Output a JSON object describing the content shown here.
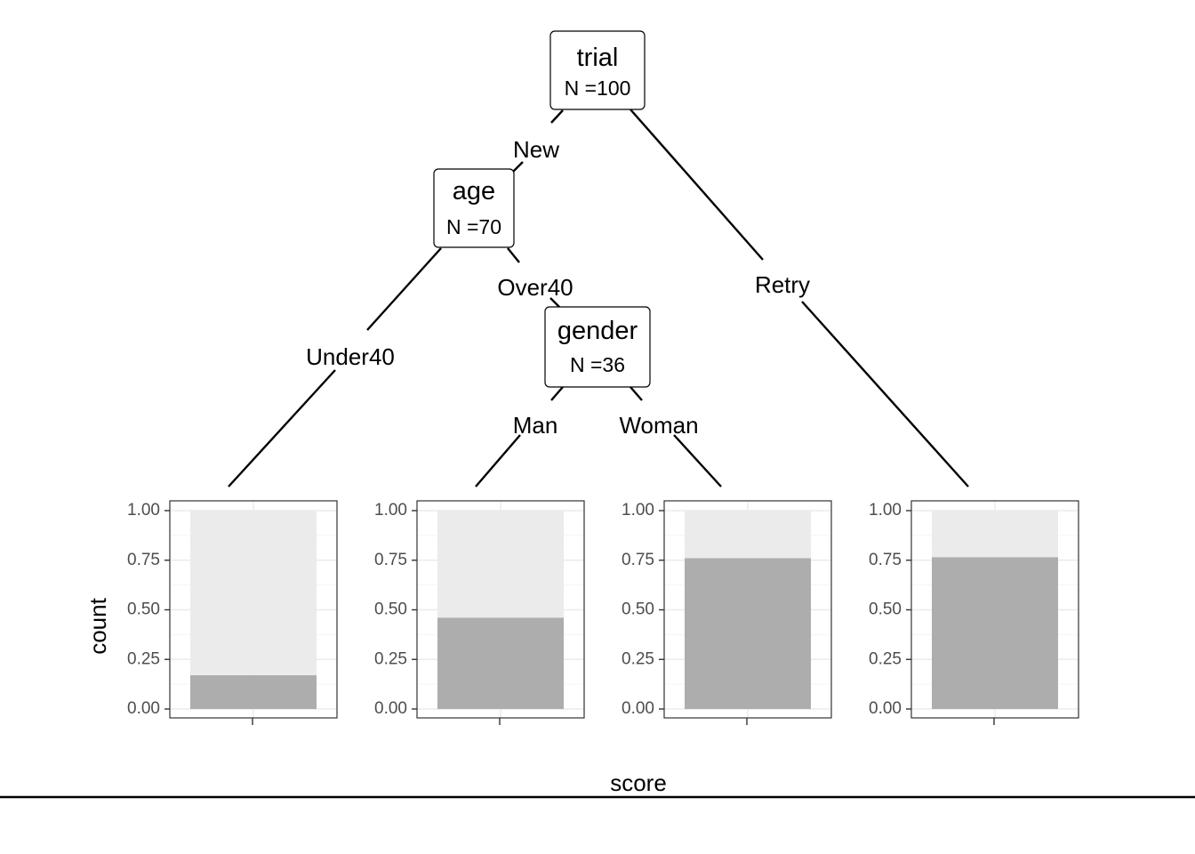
{
  "chart_data": {
    "type": "bar",
    "subtype": "decision-tree-with-terminal-bar-panels",
    "colors": {
      "level_1": "#adadad",
      "level_0": "#ebebeb"
    },
    "tree": {
      "nodes": [
        {
          "id": "n1",
          "name": "trial",
          "n_label": "N =100"
        },
        {
          "id": "n2",
          "name": "age",
          "n_label": "N =70"
        },
        {
          "id": "n3",
          "name": "gender",
          "n_label": "N =36"
        }
      ],
      "edges": [
        {
          "from": "n1",
          "to": "n2",
          "label": "New"
        },
        {
          "from": "n1",
          "to": "leaf4",
          "label": "Retry"
        },
        {
          "from": "n2",
          "to": "leaf1",
          "label": "Under40"
        },
        {
          "from": "n2",
          "to": "n3",
          "label": "Over40"
        },
        {
          "from": "n3",
          "to": "leaf2",
          "label": "Man"
        },
        {
          "from": "n3",
          "to": "leaf3",
          "label": "Woman"
        }
      ]
    },
    "leaves": [
      {
        "id": "leaf1",
        "values": [
          0.17,
          0.83
        ]
      },
      {
        "id": "leaf2",
        "values": [
          0.46,
          0.54
        ]
      },
      {
        "id": "leaf3",
        "values": [
          0.76,
          0.24
        ]
      },
      {
        "id": "leaf4",
        "values": [
          0.765,
          0.235
        ]
      }
    ],
    "ylim": [
      0,
      1
    ],
    "yticks": [
      "0.00",
      "0.25",
      "0.50",
      "0.75",
      "1.00"
    ],
    "ylabel": "count",
    "xlabel": "score",
    "grid": true
  }
}
